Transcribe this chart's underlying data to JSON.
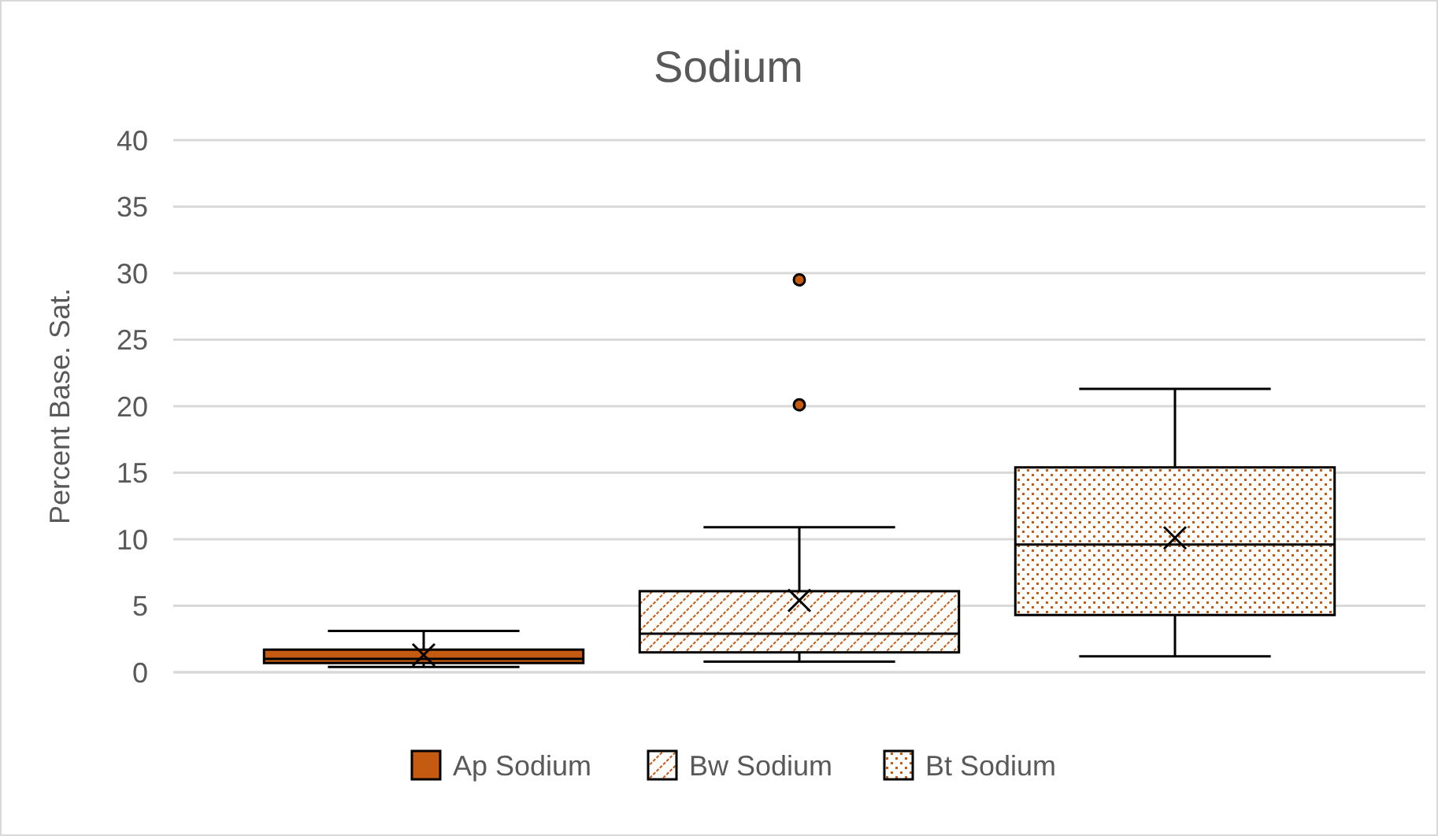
{
  "chart_data": {
    "type": "box",
    "title": "Sodium",
    "ylabel": "Percent Base. Sat.",
    "categories": [
      null
    ],
    "ylim": [
      0,
      40
    ],
    "yticks": [
      0,
      5,
      10,
      15,
      20,
      25,
      30,
      35,
      40
    ],
    "grid": "y",
    "legend": "bottom",
    "series": [
      {
        "name": "Ap Sodium",
        "color": "#c55a11",
        "boxes": [
          {
            "low": 0.4,
            "q1": 0.7,
            "median": 1.0,
            "q3": 1.7,
            "high": 3.1,
            "mean": 1.3
          }
        ]
      },
      {
        "name": "Bw Sodium",
        "color": "#c55a11",
        "boxes": [
          {
            "low": 0.8,
            "q1": 1.5,
            "median": 2.9,
            "q3": 6.1,
            "high": 10.9,
            "mean": 5.4,
            "outliers": [
              20.1,
              29.5
            ]
          }
        ]
      },
      {
        "name": "Bt Sodium",
        "color": "#c55a11",
        "boxes": [
          {
            "low": 1.2,
            "q1": 4.3,
            "median": 9.6,
            "q3": 15.4,
            "high": 21.3,
            "mean": 10.1
          }
        ]
      }
    ]
  }
}
